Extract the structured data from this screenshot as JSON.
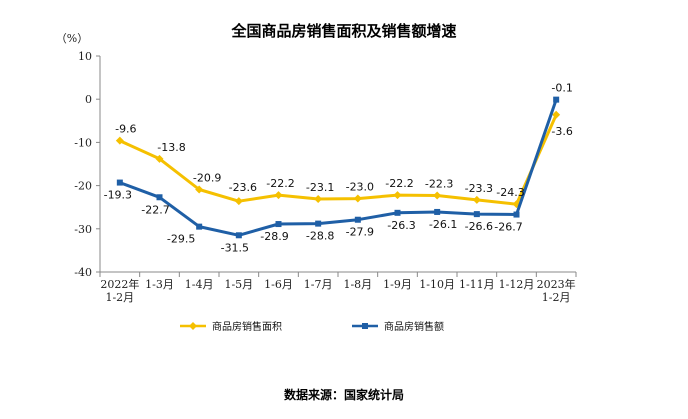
{
  "chart_data": {
    "type": "line",
    "title": "全国商品房销售面积及销售额增速",
    "ylabel": "（%）",
    "xlabel": "",
    "ylim": [
      -40,
      10
    ],
    "yticks": [
      10,
      0,
      -10,
      -20,
      -30,
      -40
    ],
    "categories": [
      "2022年\n1-2月",
      "1-3月",
      "1-4月",
      "1-5月",
      "1-6月",
      "1-7月",
      "1-8月",
      "1-9月",
      "1-10月",
      "1-11月",
      "1-12月",
      "2023年\n1-2月"
    ],
    "series": [
      {
        "name": "商品房销售面积",
        "color": "#F5C000",
        "marker": "diamond",
        "values": [
          -9.6,
          -13.8,
          -20.9,
          -23.6,
          -22.2,
          -23.1,
          -23.0,
          -22.2,
          -22.3,
          -23.3,
          -24.3,
          -3.6
        ],
        "labels": [
          "-9.6",
          "-13.8",
          "-20.9",
          "-23.6",
          "-22.2",
          "-23.1",
          "-23.0",
          "-22.2",
          "-22.3",
          "-23.3",
          "-24.3",
          "-3.6"
        ]
      },
      {
        "name": "商品房销售额",
        "color": "#1F5FA6",
        "marker": "square",
        "values": [
          -19.3,
          -22.7,
          -29.5,
          -31.5,
          -28.9,
          -28.8,
          -27.9,
          -26.3,
          -26.1,
          -26.6,
          -26.7,
          -0.1
        ],
        "labels": [
          "-19.3",
          "-22.7",
          "-29.5",
          "-31.5",
          "-28.9",
          "-28.8",
          "-27.9",
          "-26.3",
          "-26.1",
          "-26.6",
          "-26.7",
          "-0.1"
        ]
      }
    ],
    "legend": "bottom",
    "grid": false
  },
  "source": "数据来源：国家统计局"
}
